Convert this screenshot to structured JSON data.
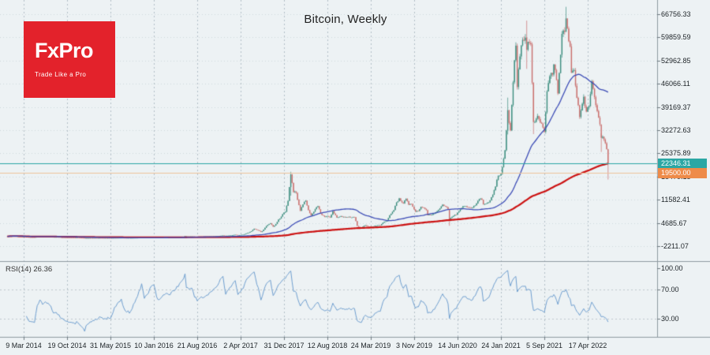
{
  "window": {
    "title": "Bitcoin, Weekly"
  },
  "logo": {
    "brand": "FxPro",
    "tagline": "Trade Like a Pro",
    "background": "#e3222b",
    "text_color": "#ffffff"
  },
  "rsi_panel": {
    "label": "RSI(14) 26.36",
    "level_labels": [
      "100.00",
      "70.00",
      "30.00"
    ]
  },
  "chart_data": {
    "type": "candlestick",
    "title": "Bitcoin, Weekly",
    "symbol": "Bitcoin",
    "timeframe": "Weekly",
    "background": "#edf2f4",
    "y_axis": {
      "tick_labels": [
        "66756.33",
        "59859.59",
        "52962.85",
        "46066.11",
        "39169.37",
        "32272.63",
        "25375.89",
        "18479.15",
        "11582.41",
        "4685.67",
        "-2211.07"
      ],
      "visible_range": [
        -2211.07,
        66756.33
      ],
      "tick_step": 6896.74
    },
    "x_axis": {
      "tick_labels": [
        "9 Mar 2014",
        "19 Oct 2014",
        "31 May 2015",
        "10 Jan 2016",
        "21 Aug 2016",
        "2 Apr 2017",
        "31 Dec 2017",
        "12 Aug 2018",
        "24 Mar 2019",
        "3 Nov 2019",
        "14 Jun 2020",
        "24 Jan 2021",
        "5 Sep 2021",
        "17 Apr 2022"
      ],
      "weeks_per_tick": 32,
      "first_tick_week": 12
    },
    "price_lines": [
      {
        "role": "current-price",
        "label": "22346.31",
        "value": 22346.31,
        "color": "#2ba7a4",
        "line_color": "#2ba7a4"
      },
      {
        "role": "level-line",
        "label": "19500.00",
        "value": 19500.0,
        "color": "#ee8b49",
        "line_color": "#eec29b"
      }
    ],
    "overlays": [
      {
        "name": "ma-fast-blue",
        "type": "sma",
        "period": 50,
        "color": "#3d4db7",
        "width": 1.3
      },
      {
        "name": "ma-slow-red",
        "type": "sma",
        "period": 200,
        "color": "#cc1212",
        "width": 2.2
      }
    ],
    "indicator": {
      "name": "RSI",
      "period": 14,
      "current_value": 26.36,
      "color": "#6f9fd0",
      "levels": [
        100,
        70,
        30
      ]
    },
    "candle_colors": {
      "up": "#3c8e7f",
      "down": "#ca6f6d"
    },
    "grid": {
      "vertical_color": "#b3bfc6",
      "horizontal_color": "#cfd8dc",
      "rsi_level_color": "#bfc9ce",
      "frame_color": "#8f9aa1"
    },
    "keyframes_week_close": [
      [
        0,
        700
      ],
      [
        2,
        810
      ],
      [
        4,
        830
      ],
      [
        6,
        780
      ],
      [
        8,
        680
      ],
      [
        10,
        625
      ],
      [
        12,
        630
      ],
      [
        14,
        560
      ],
      [
        16,
        455
      ],
      [
        18,
        445
      ],
      [
        20,
        430
      ],
      [
        22,
        580
      ],
      [
        24,
        655
      ],
      [
        26,
        600
      ],
      [
        28,
        635
      ],
      [
        30,
        620
      ],
      [
        32,
        590
      ],
      [
        34,
        505
      ],
      [
        36,
        510
      ],
      [
        40,
        430
      ],
      [
        44,
        390
      ],
      [
        48,
        370
      ],
      [
        52,
        350
      ],
      [
        54,
        310
      ],
      [
        56,
        270
      ],
      [
        57,
        200
      ],
      [
        58,
        225
      ],
      [
        60,
        235
      ],
      [
        64,
        245
      ],
      [
        68,
        255
      ],
      [
        72,
        240
      ],
      [
        76,
        232
      ],
      [
        80,
        265
      ],
      [
        84,
        290
      ],
      [
        86,
        260
      ],
      [
        90,
        238
      ],
      [
        94,
        270
      ],
      [
        98,
        330
      ],
      [
        99,
        378
      ],
      [
        100,
        355
      ],
      [
        101,
        322
      ],
      [
        104,
        360
      ],
      [
        106,
        430
      ],
      [
        108,
        450
      ],
      [
        110,
        395
      ],
      [
        112,
        378
      ],
      [
        116,
        415
      ],
      [
        120,
        420
      ],
      [
        124,
        455
      ],
      [
        128,
        530
      ],
      [
        130,
        585
      ],
      [
        131,
        755
      ],
      [
        132,
        665
      ],
      [
        134,
        655
      ],
      [
        136,
        675
      ],
      [
        138,
        610
      ],
      [
        140,
        580
      ],
      [
        142,
        610
      ],
      [
        144,
        615
      ],
      [
        146,
        630
      ],
      [
        148,
        642
      ],
      [
        152,
        700
      ],
      [
        156,
        780
      ],
      [
        158,
        900
      ],
      [
        159,
        958
      ],
      [
        160,
        895
      ],
      [
        161,
        830
      ],
      [
        163,
        915
      ],
      [
        166,
        1050
      ],
      [
        168,
        1180
      ],
      [
        170,
        1030
      ],
      [
        172,
        1100
      ],
      [
        174,
        1190
      ],
      [
        176,
        1550
      ],
      [
        178,
        1800
      ],
      [
        180,
        2250
      ],
      [
        182,
        2960
      ],
      [
        184,
        2600
      ],
      [
        185,
        2500
      ],
      [
        187,
        1990
      ],
      [
        188,
        2250
      ],
      [
        190,
        3260
      ],
      [
        192,
        4100
      ],
      [
        194,
        4600
      ],
      [
        196,
        3580
      ],
      [
        198,
        4350
      ],
      [
        200,
        5700
      ],
      [
        201,
        6000
      ],
      [
        203,
        7300
      ],
      [
        205,
        8000
      ],
      [
        207,
        11250
      ],
      [
        209,
        19100
      ],
      [
        211,
        13850
      ],
      [
        213,
        13600
      ],
      [
        214,
        11600
      ],
      [
        216,
        8300
      ],
      [
        218,
        10200
      ],
      [
        220,
        11300
      ],
      [
        222,
        8500
      ],
      [
        224,
        6900
      ],
      [
        226,
        8000
      ],
      [
        228,
        9350
      ],
      [
        229,
        9650
      ],
      [
        231,
        7500
      ],
      [
        234,
        6500
      ],
      [
        236,
        6750
      ],
      [
        238,
        6300
      ],
      [
        240,
        8200
      ],
      [
        242,
        7000
      ],
      [
        243,
        6250
      ],
      [
        246,
        6700
      ],
      [
        248,
        6500
      ],
      [
        252,
        6550
      ],
      [
        254,
        6300
      ],
      [
        256,
        6400
      ],
      [
        258,
        3800
      ],
      [
        261,
        3200
      ],
      [
        263,
        3850
      ],
      [
        264,
        4000
      ],
      [
        266,
        3600
      ],
      [
        268,
        3500
      ],
      [
        272,
        3900
      ],
      [
        275,
        4000
      ],
      [
        278,
        5050
      ],
      [
        280,
        5300
      ],
      [
        282,
        7000
      ],
      [
        285,
        8500
      ],
      [
        287,
        10800
      ],
      [
        289,
        12000
      ],
      [
        291,
        10800
      ],
      [
        292,
        10500
      ],
      [
        294,
        11900
      ],
      [
        296,
        10100
      ],
      [
        298,
        10300
      ],
      [
        301,
        8000
      ],
      [
        303,
        8250
      ],
      [
        305,
        9500
      ],
      [
        307,
        9200
      ],
      [
        309,
        8500
      ],
      [
        310,
        7000
      ],
      [
        313,
        7100
      ],
      [
        315,
        7500
      ],
      [
        318,
        8600
      ],
      [
        321,
        10100
      ],
      [
        323,
        9600
      ],
      [
        325,
        8800
      ],
      [
        326,
        5300
      ],
      [
        327,
        6200
      ],
      [
        329,
        6800
      ],
      [
        331,
        7100
      ],
      [
        334,
        8700
      ],
      [
        336,
        9650
      ],
      [
        339,
        9400
      ],
      [
        342,
        9150
      ],
      [
        345,
        9900
      ],
      [
        348,
        11800
      ],
      [
        350,
        11600
      ],
      [
        351,
        10200
      ],
      [
        354,
        10700
      ],
      [
        356,
        11400
      ],
      [
        358,
        13050
      ],
      [
        360,
        15500
      ],
      [
        362,
        18700
      ],
      [
        364,
        19200
      ],
      [
        366,
        23800
      ],
      [
        367,
        26300
      ],
      [
        368,
        32200
      ],
      [
        369,
        38200
      ],
      [
        371,
        32200
      ],
      [
        373,
        46500
      ],
      [
        375,
        57400
      ],
      [
        376,
        45100
      ],
      [
        378,
        54200
      ],
      [
        379,
        57500
      ],
      [
        381,
        58900
      ],
      [
        382,
        59800
      ],
      [
        383,
        56200
      ],
      [
        385,
        58200
      ],
      [
        386,
        57800
      ],
      [
        387,
        46400
      ],
      [
        388,
        34700
      ],
      [
        390,
        35700
      ],
      [
        392,
        35600
      ],
      [
        394,
        34200
      ],
      [
        396,
        31800
      ],
      [
        398,
        43800
      ],
      [
        399,
        46300
      ],
      [
        401,
        49300
      ],
      [
        402,
        48800
      ],
      [
        403,
        51800
      ],
      [
        405,
        47200
      ],
      [
        406,
        43200
      ],
      [
        408,
        54700
      ],
      [
        409,
        60900
      ],
      [
        411,
        61500
      ],
      [
        412,
        65500
      ],
      [
        414,
        58700
      ],
      [
        415,
        57200
      ],
      [
        416,
        49400
      ],
      [
        418,
        50100
      ],
      [
        420,
        41900
      ],
      [
        422,
        36200
      ],
      [
        424,
        40100
      ],
      [
        425,
        42200
      ],
      [
        427,
        37800
      ],
      [
        429,
        39400
      ],
      [
        431,
        46800
      ],
      [
        433,
        42100
      ],
      [
        434,
        39700
      ],
      [
        436,
        36000
      ],
      [
        437,
        34000
      ],
      [
        438,
        30000
      ],
      [
        440,
        29500
      ],
      [
        441,
        28400
      ],
      [
        442,
        26600
      ],
      [
        443,
        22350
      ]
    ],
    "wick_overrides": [
      [
        57,
        280,
        155
      ],
      [
        99,
        500,
        300
      ],
      [
        131,
        780,
        505
      ],
      [
        209,
        19898,
        12800
      ],
      [
        326,
        8180,
        3850
      ],
      [
        369,
        41950,
        31000
      ],
      [
        383,
        64850,
        50500
      ],
      [
        388,
        46500,
        31100
      ],
      [
        412,
        68950,
        63300
      ],
      [
        438,
        31300,
        25800
      ],
      [
        443,
        26700,
        17600
      ]
    ]
  }
}
